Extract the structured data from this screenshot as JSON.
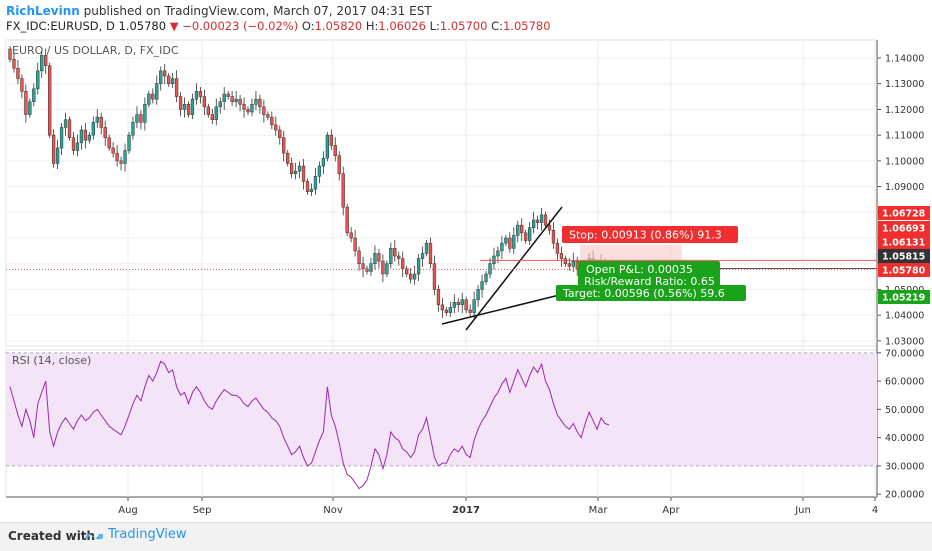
{
  "header": {
    "author": "RichLevinn",
    "published": "published on TradingView.com, March 07, 2017 04:31 EST",
    "symbol_line": "FX_IDC:EURUSD, D",
    "last": "1.05780",
    "change": "−0.00023 (−0.02%)",
    "open_label": "O:",
    "open": "1.05820",
    "high_label": "H:",
    "high": "1.06026",
    "low_label": "L:",
    "low": "1.05700",
    "close_label": "C:",
    "close": "1.05780"
  },
  "footer": {
    "created_with": "Created with",
    "brand": "TradingView"
  },
  "colors": {
    "up": "#26a69a",
    "down": "#ef5350",
    "stop_box": "#ef2f2f",
    "target_box": "#1ba21b",
    "rsi_line": "#9c27b0",
    "rsi_band": "#f3e5f7"
  },
  "chart_data": [
    {
      "type": "candlestick",
      "title": "EURO / US DOLLAR, D, FX_IDC",
      "ylim": [
        1.028,
        1.147
      ],
      "yticks": [
        "1.14000",
        "1.13000",
        "1.12000",
        "1.11000",
        "1.10000",
        "1.09000",
        "1.08000",
        "1.07000",
        "1.06000",
        "1.05000",
        "1.04000",
        "1.03000"
      ],
      "ytick_values": [
        1.14,
        1.13,
        1.12,
        1.11,
        1.1,
        1.09,
        1.08,
        1.07,
        1.06,
        1.05,
        1.04,
        1.03
      ],
      "xticks": [
        "Aug",
        "Sep",
        "Nov",
        "2017",
        "Mar",
        "Apr",
        "Jun",
        "4"
      ],
      "price_tags": [
        {
          "label": "1.06728",
          "value": 1.06728,
          "color": "#ef2f2f"
        },
        {
          "label": "1.06693",
          "value": 1.06693,
          "color": "#ef2f2f"
        },
        {
          "label": "1.06131",
          "value": 1.06131,
          "color": "#ef2f2f"
        },
        {
          "label": "1.05815",
          "value": 1.05815,
          "color": "#333333"
        },
        {
          "label": "1.05780",
          "value": 1.0578,
          "color": "#ef2f2f"
        },
        {
          "label": "1.05219",
          "value": 1.05219,
          "color": "#1ba21b"
        }
      ],
      "position": {
        "stop_text": "Stop: 0.00913 (0.86%) 91.3",
        "pnl_text": "Open P&L: 0.00035",
        "rr_text": "Risk/Reward Ratio: 0.65",
        "target_text": "Target: 0.00596 (0.56%) 59.6",
        "entry": 1.05815,
        "stop": 1.06728,
        "target": 1.05219
      },
      "closes": [
        1.1395,
        1.136,
        1.132,
        1.127,
        1.118,
        1.123,
        1.128,
        1.135,
        1.141,
        1.137,
        1.11,
        1.099,
        1.105,
        1.113,
        1.116,
        1.109,
        1.104,
        1.107,
        1.112,
        1.108,
        1.11,
        1.115,
        1.117,
        1.113,
        1.109,
        1.105,
        1.103,
        1.1,
        1.099,
        1.104,
        1.11,
        1.115,
        1.118,
        1.115,
        1.122,
        1.126,
        1.124,
        1.13,
        1.135,
        1.133,
        1.13,
        1.132,
        1.125,
        1.12,
        1.122,
        1.118,
        1.124,
        1.127,
        1.125,
        1.121,
        1.118,
        1.116,
        1.121,
        1.123,
        1.126,
        1.125,
        1.123,
        1.124,
        1.122,
        1.12,
        1.119,
        1.122,
        1.124,
        1.121,
        1.118,
        1.117,
        1.114,
        1.112,
        1.109,
        1.103,
        1.099,
        1.095,
        1.096,
        1.098,
        1.092,
        1.088,
        1.089,
        1.094,
        1.098,
        1.101,
        1.11,
        1.106,
        1.102,
        1.095,
        1.082,
        1.072,
        1.07,
        1.065,
        1.06,
        1.058,
        1.057,
        1.06,
        1.064,
        1.061,
        1.056,
        1.06,
        1.066,
        1.063,
        1.062,
        1.058,
        1.056,
        1.054,
        1.056,
        1.062,
        1.064,
        1.068,
        1.06,
        1.05,
        1.044,
        1.042,
        1.041,
        1.043,
        1.045,
        1.044,
        1.046,
        1.042,
        1.041,
        1.046,
        1.05,
        1.053,
        1.056,
        1.06,
        1.063,
        1.065,
        1.068,
        1.07,
        1.066,
        1.071,
        1.075,
        1.072,
        1.069,
        1.074,
        1.077,
        1.076,
        1.079,
        1.075,
        1.073,
        1.068,
        1.064,
        1.062,
        1.06,
        1.059,
        1.061,
        1.058,
        1.056,
        1.059,
        1.062,
        1.06,
        1.058,
        1.061,
        1.059,
        1.0578
      ]
    },
    {
      "type": "line",
      "title": "RSI (14, close)",
      "ylim": [
        19,
        71
      ],
      "yticks": [
        "70.0000",
        "60.0000",
        "50.0000",
        "40.0000",
        "30.0000",
        "20.0000"
      ],
      "ytick_values": [
        70,
        60,
        50,
        40,
        30,
        20
      ],
      "band": [
        30,
        70
      ],
      "values": [
        58,
        53,
        48,
        44,
        50,
        46,
        40,
        52,
        56,
        60,
        42,
        37,
        42,
        45,
        47,
        45,
        43,
        46,
        48,
        46,
        47,
        49,
        50,
        48,
        46,
        44,
        43,
        42,
        41,
        44,
        48,
        52,
        55,
        53,
        58,
        62,
        60,
        63,
        67,
        66,
        63,
        64,
        58,
        55,
        56,
        52,
        56,
        58,
        56,
        53,
        51,
        50,
        53,
        55,
        57,
        56,
        55,
        55,
        54,
        52,
        51,
        53,
        54,
        52,
        50,
        49,
        47,
        46,
        44,
        40,
        37,
        34,
        35,
        37,
        33,
        30,
        31,
        35,
        39,
        42,
        58,
        48,
        44,
        38,
        31,
        27,
        26,
        24,
        22,
        23,
        25,
        30,
        36,
        34,
        29,
        34,
        42,
        40,
        39,
        36,
        35,
        33,
        35,
        41,
        43,
        47,
        40,
        33,
        30,
        31,
        31,
        34,
        36,
        35,
        37,
        34,
        33,
        39,
        43,
        46,
        48,
        51,
        54,
        56,
        59,
        61,
        56,
        60,
        64,
        61,
        58,
        62,
        65,
        63,
        66,
        60,
        57,
        52,
        48,
        46,
        44,
        43,
        45,
        42,
        40,
        45,
        49,
        46,
        43,
        47,
        45,
        44.5
      ]
    }
  ]
}
